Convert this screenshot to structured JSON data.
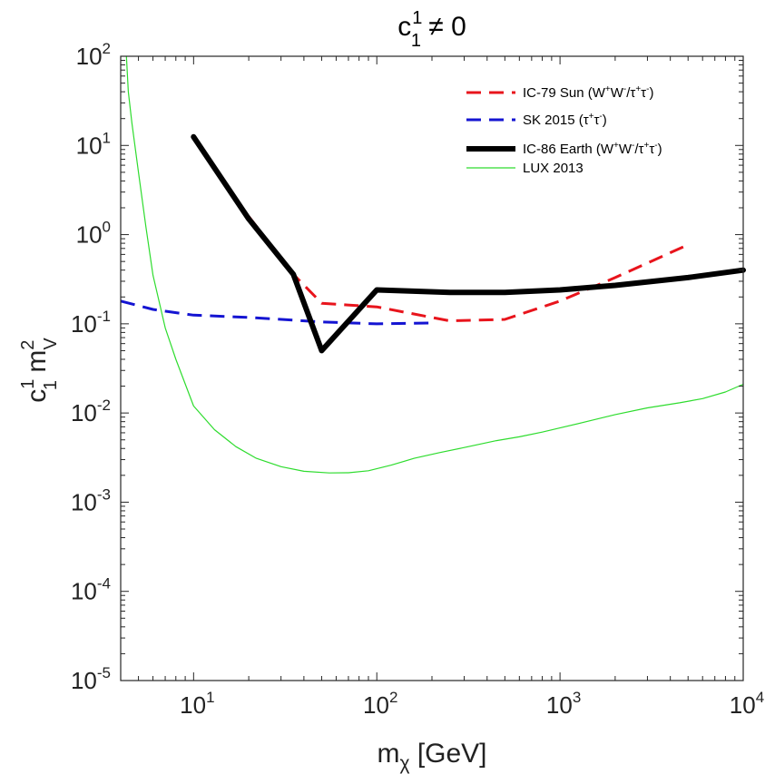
{
  "chart_data": {
    "type": "line",
    "title": {
      "main": "c",
      "sub": "1",
      "sup": "1",
      "rest": " ≠ 0"
    },
    "xlabel": {
      "main": "m",
      "sub": "χ",
      "rest": "  [GeV]"
    },
    "ylabel": {
      "c": "c",
      "c_sup": "1",
      "c_sub": "1",
      "m": " m",
      "m_sup": "2",
      "m_sub": "V"
    },
    "xscale": "log",
    "yscale": "log",
    "xlim": [
      4,
      10000
    ],
    "ylim": [
      1e-05,
      100
    ],
    "x_ticks": [
      {
        "value": 10,
        "base": "10",
        "exp": "1"
      },
      {
        "value": 100,
        "base": "10",
        "exp": "2"
      },
      {
        "value": 1000,
        "base": "10",
        "exp": "3"
      },
      {
        "value": 10000,
        "base": "10",
        "exp": "4"
      }
    ],
    "y_ticks": [
      {
        "value": 1e-05,
        "base": "10",
        "exp": "-5"
      },
      {
        "value": 0.0001,
        "base": "10",
        "exp": "-4"
      },
      {
        "value": 0.001,
        "base": "10",
        "exp": "-3"
      },
      {
        "value": 0.01,
        "base": "10",
        "exp": "-2"
      },
      {
        "value": 0.1,
        "base": "10",
        "exp": "-1"
      },
      {
        "value": 1,
        "base": "10",
        "exp": "0"
      },
      {
        "value": 10,
        "base": "10",
        "exp": "1"
      },
      {
        "value": 100,
        "base": "10",
        "exp": "2"
      }
    ],
    "legend_position": "top-right",
    "series": [
      {
        "name": "IC-79 Sun",
        "legend": [
          {
            "t": "IC-79 Sun (W"
          },
          {
            "t": "+",
            "sup": true
          },
          {
            "t": "W"
          },
          {
            "t": "-",
            "sup": true
          },
          {
            "t": "/τ"
          },
          {
            "t": "+",
            "sup": true
          },
          {
            "t": "τ"
          },
          {
            "t": "-",
            "sup": true
          },
          {
            "t": ")"
          }
        ],
        "color": "#e8141c",
        "style": "dashed",
        "width": 3,
        "x": [
          20,
          35,
          50,
          100,
          250,
          500,
          1000,
          2000,
          5000
        ],
        "y": [
          1.6,
          0.36,
          0.17,
          0.155,
          0.108,
          0.112,
          0.18,
          0.33,
          0.77
        ]
      },
      {
        "name": "SK 2015",
        "legend": [
          {
            "t": "SK 2015 (τ"
          },
          {
            "t": "+",
            "sup": true
          },
          {
            "t": "τ"
          },
          {
            "t": "-",
            "sup": true
          },
          {
            "t": ")"
          }
        ],
        "color": "#1414d2",
        "style": "dashed",
        "width": 3,
        "x": [
          4,
          6,
          10,
          20,
          50,
          100,
          200
        ],
        "y": [
          0.18,
          0.145,
          0.125,
          0.118,
          0.105,
          0.1,
          0.102
        ]
      },
      {
        "name": "IC-86 Earth",
        "legend": [
          {
            "t": "IC-86 Earth (W"
          },
          {
            "t": "+",
            "sup": true
          },
          {
            "t": "W"
          },
          {
            "t": "-",
            "sup": true
          },
          {
            "t": "/τ"
          },
          {
            "t": "+",
            "sup": true
          },
          {
            "t": "τ"
          },
          {
            "t": "-",
            "sup": true
          },
          {
            "t": ")"
          }
        ],
        "color": "#000000",
        "style": "solid",
        "width": 6,
        "x": [
          10,
          20,
          35,
          50,
          100,
          250,
          500,
          1000,
          2000,
          5000,
          10000
        ],
        "y": [
          12.5,
          1.5,
          0.36,
          0.05,
          0.24,
          0.225,
          0.225,
          0.24,
          0.27,
          0.33,
          0.4
        ]
      },
      {
        "name": "LUX 2013",
        "legend": [
          {
            "t": "LUX 2013"
          }
        ],
        "color": "#2edc2e",
        "style": "solid",
        "width": 1.2,
        "x": [
          4.3,
          4.4,
          4.6,
          5,
          5.5,
          6,
          7,
          8,
          10,
          13,
          17,
          22,
          30,
          40,
          55,
          70,
          90,
          120,
          160,
          220,
          300,
          450,
          600,
          800,
          1000,
          1500,
          2000,
          3000,
          4500,
          6000,
          8000,
          10000
        ],
        "y": [
          100,
          40,
          18,
          5,
          1.2,
          0.35,
          0.09,
          0.04,
          0.012,
          0.0065,
          0.0042,
          0.0031,
          0.0025,
          0.00222,
          0.00213,
          0.00214,
          0.00225,
          0.0026,
          0.0031,
          0.0036,
          0.0041,
          0.0049,
          0.0054,
          0.0061,
          0.0068,
          0.0083,
          0.0096,
          0.0114,
          0.013,
          0.0145,
          0.0172,
          0.021
        ]
      }
    ]
  }
}
